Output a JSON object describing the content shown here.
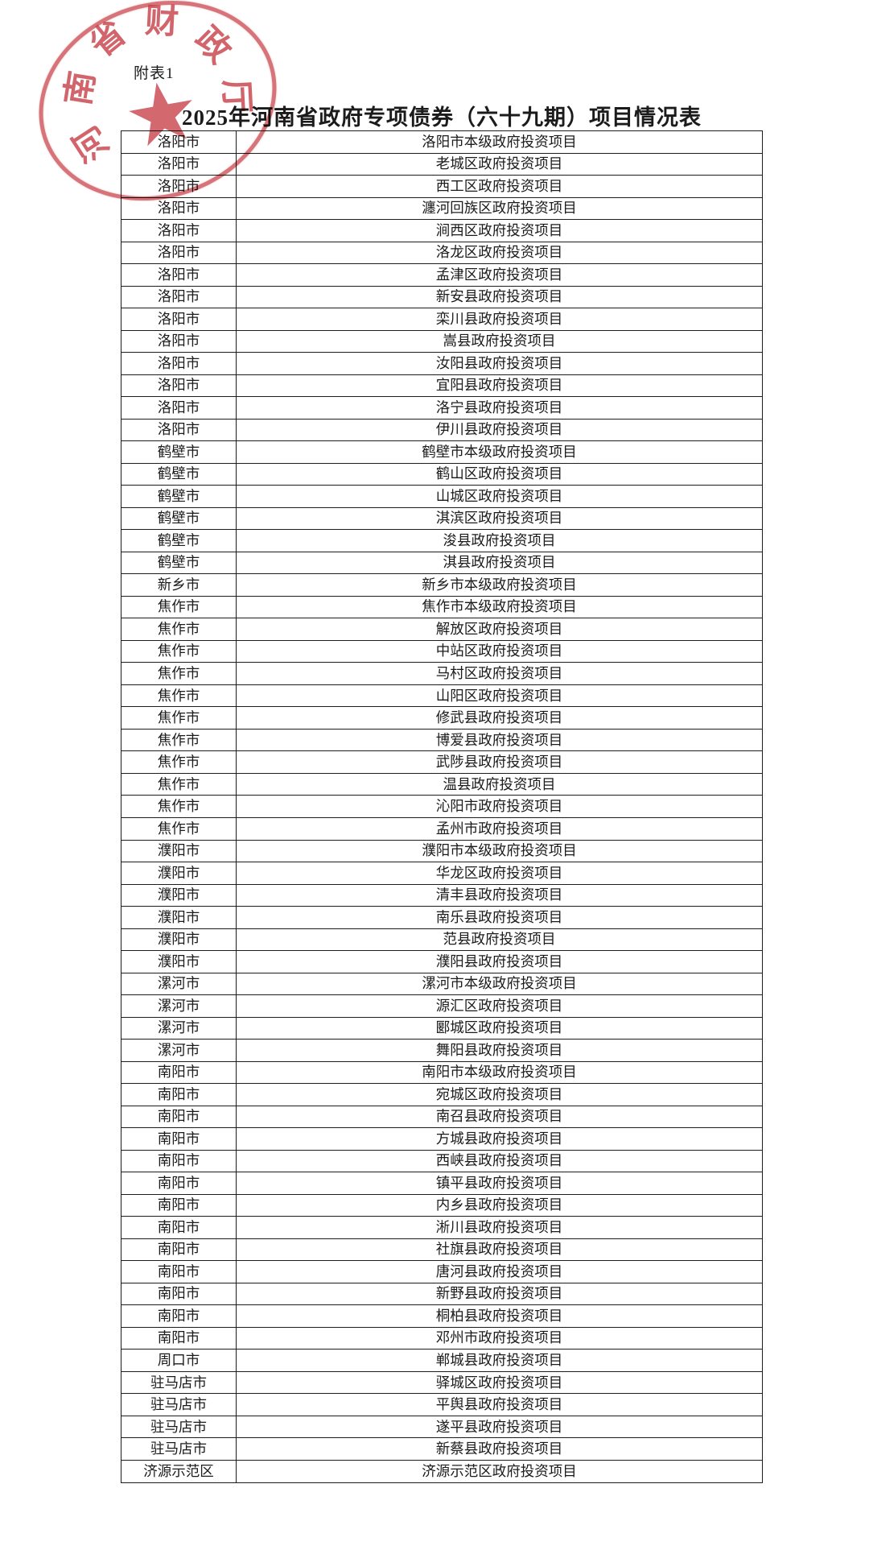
{
  "page": {
    "attachment_label": "附表1",
    "title": "2025年河南省政府专项债券（六十九期）项目情况表"
  },
  "seal": {
    "agency": "河南省财政厅",
    "chars": [
      "河",
      "南",
      "省",
      "财",
      "政",
      "厅"
    ],
    "star_glyph": "★",
    "color": "#c73e47"
  },
  "table": {
    "rows": [
      {
        "city": "洛阳市",
        "project": "洛阳市本级政府投资项目"
      },
      {
        "city": "洛阳市",
        "project": "老城区政府投资项目"
      },
      {
        "city": "洛阳市",
        "project": "西工区政府投资项目"
      },
      {
        "city": "洛阳市",
        "project": "瀍河回族区政府投资项目"
      },
      {
        "city": "洛阳市",
        "project": "涧西区政府投资项目"
      },
      {
        "city": "洛阳市",
        "project": "洛龙区政府投资项目"
      },
      {
        "city": "洛阳市",
        "project": "孟津区政府投资项目"
      },
      {
        "city": "洛阳市",
        "project": "新安县政府投资项目"
      },
      {
        "city": "洛阳市",
        "project": "栾川县政府投资项目"
      },
      {
        "city": "洛阳市",
        "project": "嵩县政府投资项目"
      },
      {
        "city": "洛阳市",
        "project": "汝阳县政府投资项目"
      },
      {
        "city": "洛阳市",
        "project": "宜阳县政府投资项目"
      },
      {
        "city": "洛阳市",
        "project": "洛宁县政府投资项目"
      },
      {
        "city": "洛阳市",
        "project": "伊川县政府投资项目"
      },
      {
        "city": "鹤壁市",
        "project": "鹤壁市本级政府投资项目"
      },
      {
        "city": "鹤壁市",
        "project": "鹤山区政府投资项目"
      },
      {
        "city": "鹤壁市",
        "project": "山城区政府投资项目"
      },
      {
        "city": "鹤壁市",
        "project": "淇滨区政府投资项目"
      },
      {
        "city": "鹤壁市",
        "project": "浚县政府投资项目"
      },
      {
        "city": "鹤壁市",
        "project": "淇县政府投资项目"
      },
      {
        "city": "新乡市",
        "project": "新乡市本级政府投资项目"
      },
      {
        "city": "焦作市",
        "project": "焦作市本级政府投资项目"
      },
      {
        "city": "焦作市",
        "project": "解放区政府投资项目"
      },
      {
        "city": "焦作市",
        "project": "中站区政府投资项目"
      },
      {
        "city": "焦作市",
        "project": "马村区政府投资项目"
      },
      {
        "city": "焦作市",
        "project": "山阳区政府投资项目"
      },
      {
        "city": "焦作市",
        "project": "修武县政府投资项目"
      },
      {
        "city": "焦作市",
        "project": "博爱县政府投资项目"
      },
      {
        "city": "焦作市",
        "project": "武陟县政府投资项目"
      },
      {
        "city": "焦作市",
        "project": "温县政府投资项目"
      },
      {
        "city": "焦作市",
        "project": "沁阳市政府投资项目"
      },
      {
        "city": "焦作市",
        "project": "孟州市政府投资项目"
      },
      {
        "city": "濮阳市",
        "project": "濮阳市本级政府投资项目"
      },
      {
        "city": "濮阳市",
        "project": "华龙区政府投资项目"
      },
      {
        "city": "濮阳市",
        "project": "清丰县政府投资项目"
      },
      {
        "city": "濮阳市",
        "project": "南乐县政府投资项目"
      },
      {
        "city": "濮阳市",
        "project": "范县政府投资项目"
      },
      {
        "city": "濮阳市",
        "project": "濮阳县政府投资项目"
      },
      {
        "city": "漯河市",
        "project": "漯河市本级政府投资项目"
      },
      {
        "city": "漯河市",
        "project": "源汇区政府投资项目"
      },
      {
        "city": "漯河市",
        "project": "郾城区政府投资项目"
      },
      {
        "city": "漯河市",
        "project": "舞阳县政府投资项目"
      },
      {
        "city": "南阳市",
        "project": "南阳市本级政府投资项目"
      },
      {
        "city": "南阳市",
        "project": "宛城区政府投资项目"
      },
      {
        "city": "南阳市",
        "project": "南召县政府投资项目"
      },
      {
        "city": "南阳市",
        "project": "方城县政府投资项目"
      },
      {
        "city": "南阳市",
        "project": "西峡县政府投资项目"
      },
      {
        "city": "南阳市",
        "project": "镇平县政府投资项目"
      },
      {
        "city": "南阳市",
        "project": "内乡县政府投资项目"
      },
      {
        "city": "南阳市",
        "project": "淅川县政府投资项目"
      },
      {
        "city": "南阳市",
        "project": "社旗县政府投资项目"
      },
      {
        "city": "南阳市",
        "project": "唐河县政府投资项目"
      },
      {
        "city": "南阳市",
        "project": "新野县政府投资项目"
      },
      {
        "city": "南阳市",
        "project": "桐柏县政府投资项目"
      },
      {
        "city": "南阳市",
        "project": "邓州市政府投资项目"
      },
      {
        "city": "周口市",
        "project": "郸城县政府投资项目"
      },
      {
        "city": "驻马店市",
        "project": "驿城区政府投资项目"
      },
      {
        "city": "驻马店市",
        "project": "平舆县政府投资项目"
      },
      {
        "city": "驻马店市",
        "project": "遂平县政府投资项目"
      },
      {
        "city": "驻马店市",
        "project": "新蔡县政府投资项目"
      },
      {
        "city": "济源示范区",
        "project": "济源示范区政府投资项目"
      }
    ]
  }
}
